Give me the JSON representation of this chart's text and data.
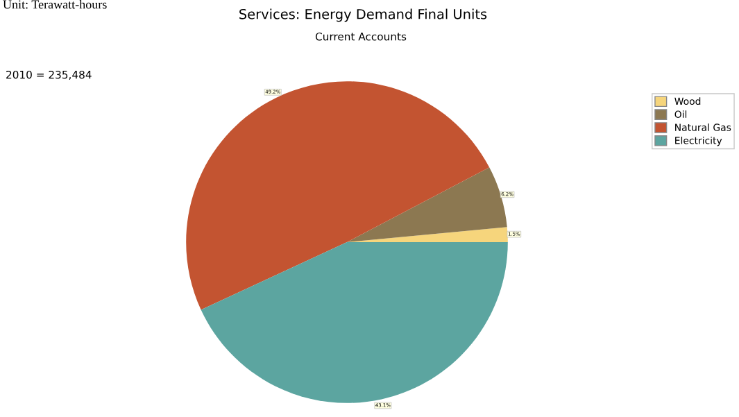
{
  "chart_data": {
    "type": "pie",
    "title": "Services: Energy Demand Final Units",
    "subtitle": "Current Accounts",
    "annotations": [
      "Unit: Terawatt-hours",
      "2010 = 235,484"
    ],
    "categories": [
      "Wood",
      "Oil",
      "Natural Gas",
      "Electricity"
    ],
    "values": [
      1.5,
      6.2,
      49.2,
      43.1
    ],
    "colors": [
      "#f6d57c",
      "#8c7851",
      "#c35431",
      "#5ca5a0"
    ],
    "value_labels": [
      "1.5%",
      "6.2%",
      "49.2%",
      "43.1%"
    ],
    "legend": "top right"
  }
}
